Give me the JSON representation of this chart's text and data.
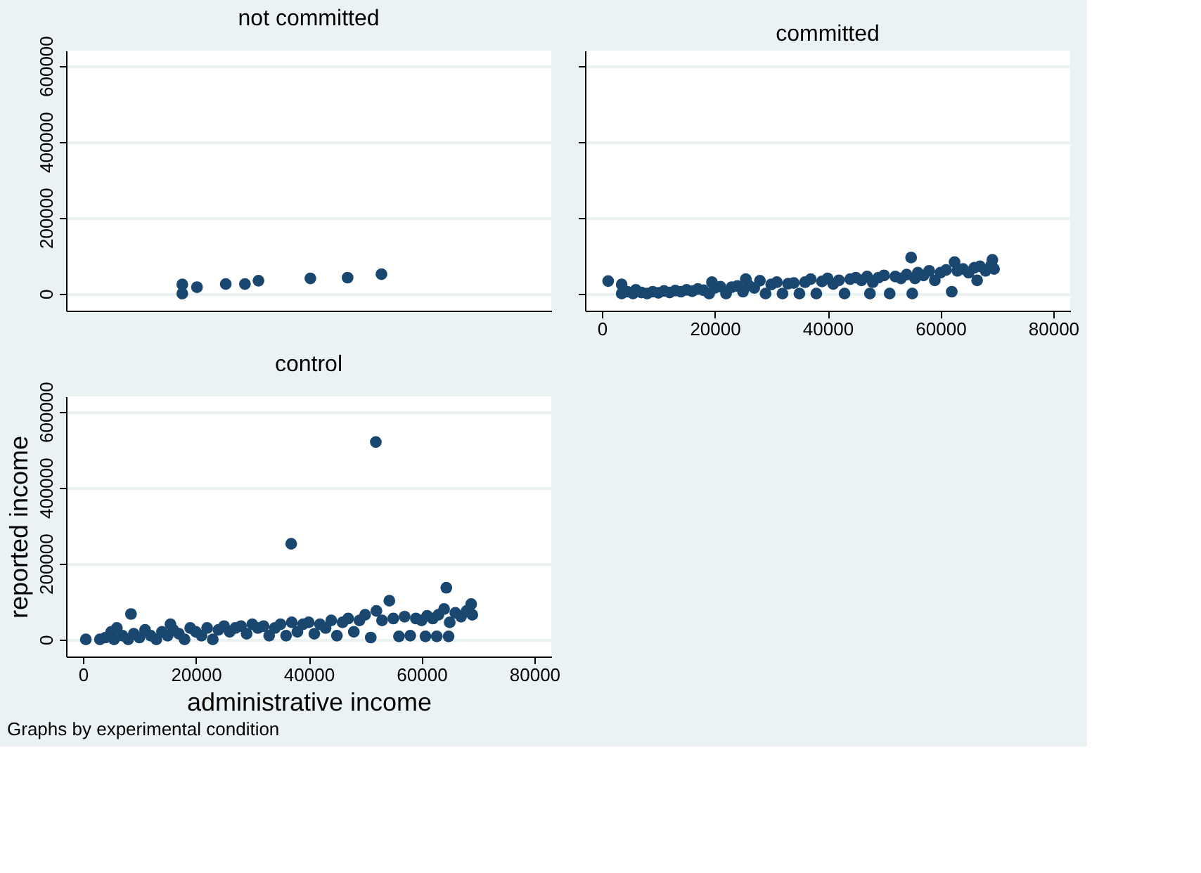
{
  "chart_data": [
    {
      "type": "scatter",
      "title": "not committed",
      "color": "#1a476f",
      "marker": "circle",
      "grid": "y",
      "tick_labels": "y",
      "xlim": [
        -3000,
        83000
      ],
      "ylim": [
        -45000,
        640000
      ],
      "xticks": [
        0,
        20000,
        40000,
        60000,
        80000
      ],
      "yticks": [
        0,
        200000,
        400000,
        600000
      ],
      "x": [
        17600,
        17600,
        20200,
        25300,
        28700,
        31100,
        40300,
        46900,
        52900
      ],
      "values": [
        0,
        24000,
        17000,
        25000,
        25000,
        34000,
        40000,
        42000,
        51000
      ]
    },
    {
      "type": "scatter",
      "title": "committed",
      "color": "#1a476f",
      "marker": "circle",
      "grid": "y",
      "tick_labels": "x",
      "xlim": [
        -3000,
        83000
      ],
      "ylim": [
        -45000,
        640000
      ],
      "xticks": [
        0,
        20000,
        40000,
        60000,
        80000
      ],
      "yticks": [
        0,
        200000,
        400000,
        600000
      ],
      "x": [
        1100,
        3500,
        3500,
        4500,
        5500,
        6000,
        7000,
        8000,
        9000,
        10000,
        11000,
        12000,
        13000,
        14000,
        15000,
        16000,
        17000,
        18000,
        19000,
        19500,
        20000,
        21000,
        22000,
        23000,
        24000,
        25000,
        25500,
        26000,
        27000,
        28000,
        29000,
        30000,
        31000,
        32000,
        33000,
        34000,
        35000,
        36000,
        37000,
        38000,
        39000,
        40000,
        41000,
        42000,
        43000,
        44000,
        45000,
        46000,
        47000,
        47500,
        48000,
        49000,
        50000,
        51000,
        52000,
        53000,
        54000,
        54800,
        55000,
        55500,
        56000,
        57000,
        58000,
        59000,
        60000,
        61000,
        62000,
        62500,
        63000,
        64000,
        65000,
        66000,
        66500,
        67000,
        68000,
        69000,
        69200,
        69500
      ],
      "values": [
        33000,
        24000,
        0,
        5000,
        0,
        10000,
        3000,
        0,
        5000,
        2000,
        7000,
        3000,
        8000,
        5000,
        10000,
        6000,
        12000,
        9000,
        0,
        30000,
        15000,
        18000,
        0,
        17000,
        20000,
        5000,
        38000,
        22000,
        15000,
        34000,
        0,
        24000,
        30000,
        0,
        26000,
        28000,
        0,
        30000,
        38000,
        0,
        32000,
        40000,
        25000,
        35000,
        0,
        38000,
        42000,
        35000,
        45000,
        0,
        30000,
        42000,
        48000,
        0,
        45000,
        40000,
        50000,
        95000,
        0,
        40000,
        55000,
        48000,
        60000,
        35000,
        55000,
        62000,
        5000,
        83000,
        60000,
        65000,
        55000,
        68000,
        35000,
        72000,
        60000,
        75000,
        89000,
        65000
      ]
    },
    {
      "type": "scatter",
      "title": "control",
      "color": "#1a476f",
      "marker": "circle",
      "grid": "y",
      "xlabel": "administrative income",
      "ylabel": "reported income",
      "annotations": [
        "Graphs by experimental condition"
      ],
      "xlim": [
        -3000,
        83000
      ],
      "ylim": [
        -45000,
        640000
      ],
      "xticks": [
        0,
        20000,
        40000,
        60000,
        80000
      ],
      "yticks": [
        0,
        200000,
        400000,
        600000
      ],
      "x": [
        500,
        3000,
        4000,
        5000,
        5500,
        6000,
        7000,
        8000,
        8500,
        9000,
        10000,
        11000,
        12000,
        13000,
        14000,
        15000,
        15500,
        16000,
        17000,
        18000,
        19000,
        20000,
        21000,
        22000,
        23000,
        24000,
        25000,
        26000,
        27000,
        28000,
        29000,
        30000,
        31000,
        32000,
        33000,
        34000,
        35000,
        36000,
        36900,
        37000,
        38000,
        39000,
        40000,
        41000,
        42000,
        43000,
        44000,
        45000,
        46000,
        47000,
        48000,
        49000,
        50000,
        51000,
        51900,
        52000,
        53000,
        54300,
        55000,
        56000,
        57000,
        58000,
        59000,
        60000,
        60700,
        61000,
        62000,
        62700,
        63000,
        64000,
        64400,
        64800,
        65000,
        66000,
        67000,
        68000,
        68800,
        69000
      ],
      "values": [
        0,
        0,
        5000,
        20000,
        0,
        30000,
        10000,
        0,
        67000,
        15000,
        5000,
        25000,
        10000,
        0,
        20000,
        10000,
        40000,
        25000,
        15000,
        0,
        30000,
        20000,
        10000,
        30000,
        0,
        25000,
        35000,
        20000,
        30000,
        35000,
        15000,
        40000,
        30000,
        35000,
        10000,
        30000,
        40000,
        10000,
        252000,
        45000,
        20000,
        40000,
        45000,
        15000,
        40000,
        30000,
        50000,
        10000,
        45000,
        55000,
        20000,
        50000,
        65000,
        5000,
        520000,
        75000,
        50000,
        102000,
        55000,
        8000,
        60000,
        10000,
        55000,
        50000,
        8000,
        62000,
        55000,
        8000,
        65000,
        80000,
        136000,
        8000,
        45000,
        70000,
        60000,
        75000,
        93000,
        65000
      ]
    }
  ]
}
